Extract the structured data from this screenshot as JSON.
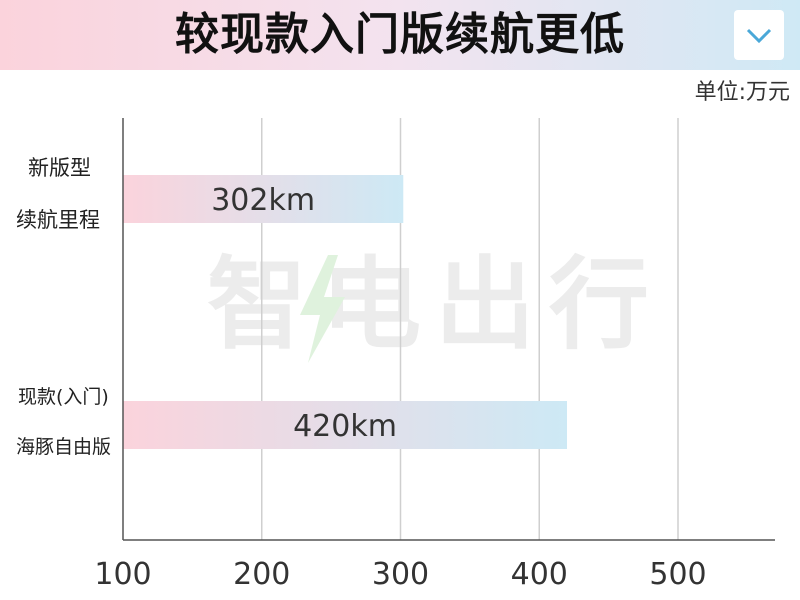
{
  "header": {
    "title": "较现款入门版续航更低"
  },
  "unit_label": "单位:万元",
  "watermark": "智电出行",
  "chart_data": {
    "type": "bar",
    "orientation": "horizontal",
    "title": "较现款入门版续航更低",
    "categories": [
      {
        "lines": [
          "新版型",
          "续航里程"
        ]
      },
      {
        "lines": [
          "现款(入门)",
          "海豚自由版"
        ]
      }
    ],
    "values": [
      302,
      420
    ],
    "value_labels": [
      "302km",
      "420km"
    ],
    "xlim": [
      100,
      500
    ],
    "xticks": [
      "100",
      "200",
      "300",
      "400",
      "500"
    ],
    "grid": true,
    "colors": {
      "bar_start": "#fbd3dc",
      "bar_end": "#cde9f5",
      "grid": "#cfcfcf",
      "axis": "#555555"
    }
  }
}
